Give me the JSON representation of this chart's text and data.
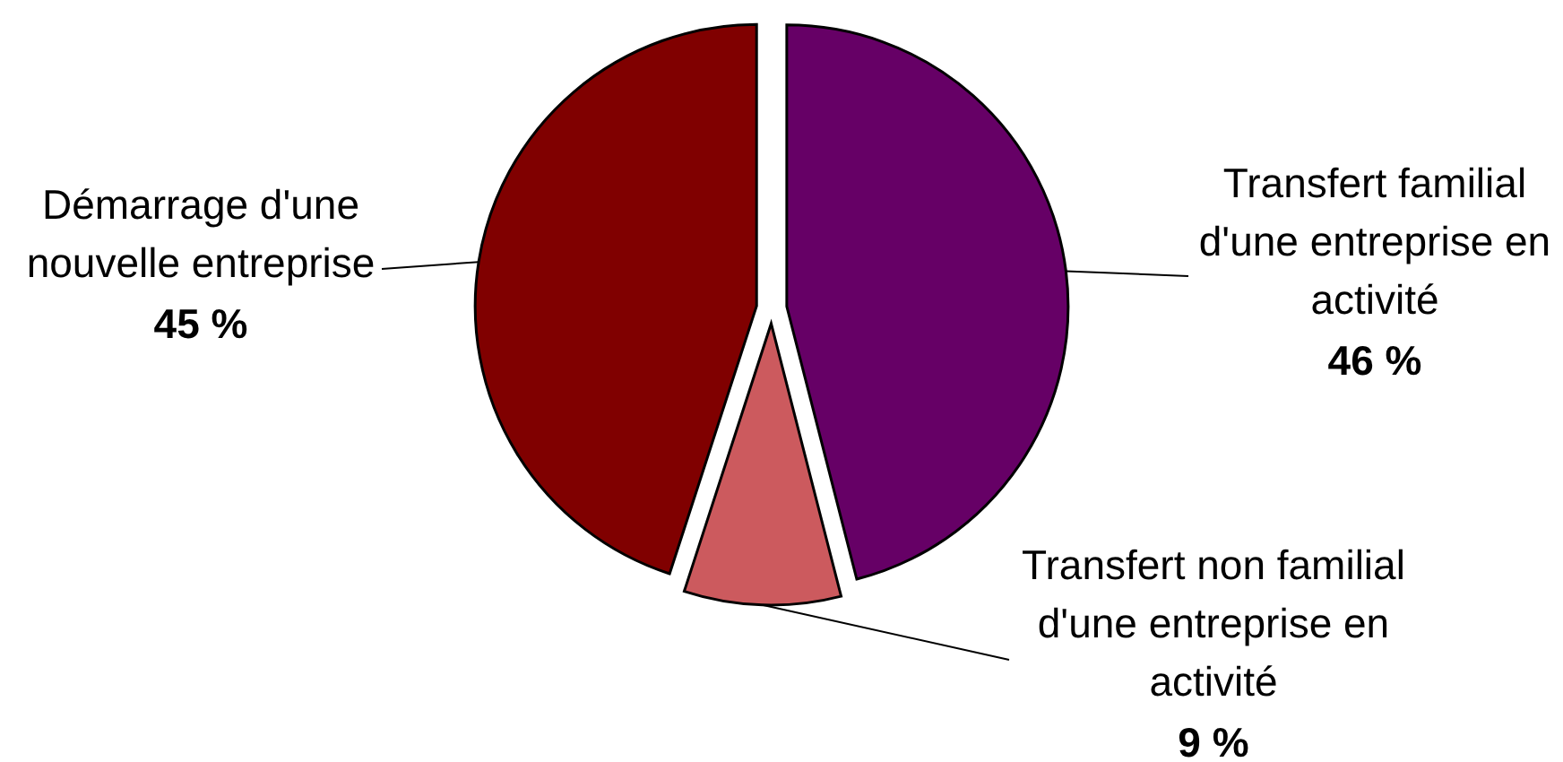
{
  "chart_data": {
    "type": "pie",
    "categories": [
      "Transfert familial d'une entreprise en activité",
      "Transfert non familial d'une entreprise en activité",
      "Démarrage d'une nouvelle entreprise"
    ],
    "values": [
      46,
      9,
      45
    ],
    "colors": [
      "#660066",
      "#cc5a5e",
      "#800000"
    ],
    "value_labels": [
      "46 %",
      "9 %",
      "45 %"
    ]
  }
}
